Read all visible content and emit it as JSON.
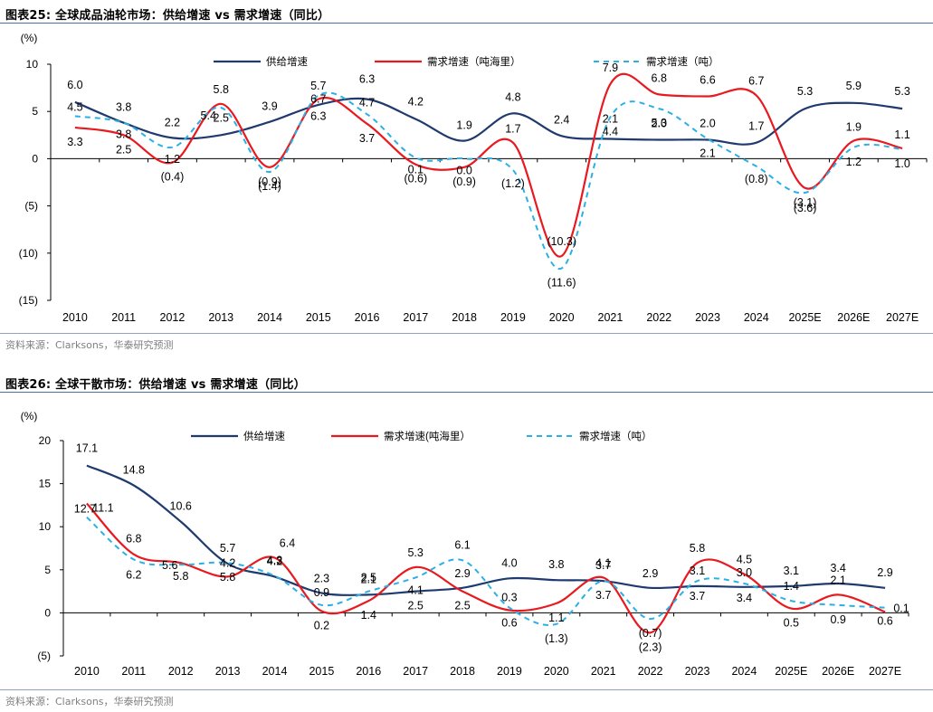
{
  "figures": [
    {
      "title": "图表25:  全球成品油轮市场：供给增速 vs 需求增速（同比）",
      "source": "资料来源：Clarksons，华泰研究预测"
    },
    {
      "title": "图表26:  全球干散市场：供给增速 vs 需求增速（同比）",
      "source": "资料来源：Clarksons，华泰研究预测"
    }
  ],
  "chart_data": [
    {
      "type": "line",
      "ylabel": "(%)",
      "ylim": [
        -15,
        10
      ],
      "y_ticks": [
        10,
        5,
        0,
        -5,
        -10,
        -15
      ],
      "y_tick_labels": [
        "10",
        "5",
        "0",
        "(5)",
        "(10)",
        "(15)"
      ],
      "categories": [
        "2010",
        "2011",
        "2012",
        "2013",
        "2014",
        "2015",
        "2016",
        "2017",
        "2018",
        "2019",
        "2020",
        "2021",
        "2022",
        "2023",
        "2024",
        "2025E",
        "2026E",
        "2027E"
      ],
      "legend": "top",
      "grid": false,
      "series": [
        {
          "name": "供给增速",
          "color": "#1f3a6e",
          "dash": "none",
          "width": 2.2,
          "values": [
            6.0,
            3.8,
            2.2,
            2.5,
            3.9,
            5.7,
            6.3,
            4.2,
            1.9,
            4.8,
            2.4,
            2.1,
            2.0,
            2.0,
            1.7,
            5.3,
            5.9,
            5.3
          ],
          "labels": [
            "6.0",
            "3.8",
            "2.2",
            "2.5",
            "3.9",
            "5.7",
            "6.3",
            "4.2",
            "1.9",
            "4.8",
            "2.4",
            "2.1",
            "2.0",
            "2.0",
            "1.7",
            "5.3",
            "5.9",
            "5.3"
          ]
        },
        {
          "name": "需求增速（吨海里）",
          "color": "#e8191f",
          "dash": "none",
          "width": 2.2,
          "values": [
            3.3,
            2.5,
            -0.4,
            5.8,
            -0.9,
            6.3,
            3.7,
            -0.6,
            -0.9,
            1.7,
            -10.3,
            7.9,
            6.8,
            6.6,
            6.7,
            -3.1,
            1.9,
            1.1
          ],
          "labels": [
            "3.3",
            "2.5",
            "(0.4)",
            "5.8",
            "(0.9)",
            "6.3",
            "3.7",
            "(0.6)",
            "(0.9)",
            "1.7",
            "(10.3)",
            "7.9",
            "6.8",
            "6.6",
            "6.7",
            "(3.1)",
            "1.9",
            "1.1"
          ]
        },
        {
          "name": "需求增速（吨）",
          "color": "#2ab0e6",
          "dash": "6,5",
          "width": 2,
          "values": [
            4.5,
            3.8,
            1.2,
            5.4,
            -1.4,
            6.7,
            4.7,
            0.1,
            0.0,
            -1.2,
            -11.6,
            4.4,
            5.3,
            2.1,
            -0.8,
            -3.6,
            1.2,
            1.0
          ],
          "labels": [
            "4.5",
            "3.8",
            "1.2",
            "5.4",
            "(1.4)",
            "6.7",
            "4.7",
            "0.1",
            "0.0",
            "(1.2)",
            "(11.6)",
            "4.4",
            "5.3",
            "2.1",
            "(0.8)",
            "(3.6)",
            "1.2",
            "1.0"
          ]
        }
      ]
    },
    {
      "type": "line",
      "ylabel": "(%)",
      "ylim": [
        -5,
        20
      ],
      "y_ticks": [
        20,
        15,
        10,
        5,
        0,
        -5
      ],
      "y_tick_labels": [
        "20",
        "15",
        "10",
        "5",
        "0",
        "(5)"
      ],
      "categories": [
        "2010",
        "2011",
        "2012",
        "2013",
        "2014",
        "2015",
        "2016",
        "2017",
        "2018",
        "2019",
        "2020",
        "2021",
        "2022",
        "2023",
        "2024",
        "2025E",
        "2026E",
        "2027E"
      ],
      "legend": "top",
      "grid": false,
      "series": [
        {
          "name": "供给增速",
          "color": "#1f3a6e",
          "dash": "none",
          "width": 2.2,
          "values": [
            17.1,
            14.8,
            10.6,
            5.7,
            4.2,
            2.3,
            2.1,
            2.5,
            2.9,
            4.0,
            3.8,
            3.7,
            2.9,
            3.1,
            3.0,
            3.1,
            3.4,
            2.9
          ],
          "labels": [
            "17.1",
            "14.8",
            "10.6",
            "5.7",
            "4.2",
            "2.3",
            "2.1",
            "2.5",
            "2.9",
            "4.0",
            "3.8",
            "3.7",
            "2.9",
            "3.1",
            "3.0",
            "3.1",
            "3.4",
            "2.9"
          ]
        },
        {
          "name": "需求增速(吨海里）",
          "color": "#e8191f",
          "dash": "none",
          "width": 2.2,
          "values": [
            12.7,
            6.8,
            5.8,
            4.2,
            6.4,
            0.2,
            1.4,
            5.3,
            2.5,
            0.3,
            1.1,
            4.1,
            -2.3,
            5.8,
            4.5,
            0.5,
            2.1,
            0.1
          ],
          "labels": [
            "12.7",
            "6.8",
            "5.8",
            "4.2",
            "6.4",
            "0.2",
            "1.4",
            "5.3",
            "2.5",
            "0.3",
            "1.1",
            "4.1",
            "(2.3)",
            "5.8",
            "4.5",
            "0.5",
            "2.1",
            "0.1"
          ]
        },
        {
          "name": "需求增速（吨）",
          "color": "#2ab0e6",
          "dash": "6,5",
          "width": 2,
          "values": [
            11.1,
            6.2,
            5.6,
            5.8,
            4.3,
            0.9,
            2.5,
            4.1,
            6.1,
            0.6,
            -1.3,
            3.7,
            -0.7,
            3.7,
            3.4,
            1.4,
            0.9,
            0.6
          ],
          "labels": [
            "11.1",
            "6.2",
            "5.6",
            "5.8",
            "4.3",
            "0.9",
            "2.5",
            "4.1",
            "6.1",
            "0.6",
            "(1.3)",
            "3.7",
            "(0.7)",
            "3.7",
            "3.4",
            "1.4",
            "0.9",
            "0.6"
          ]
        }
      ]
    }
  ]
}
